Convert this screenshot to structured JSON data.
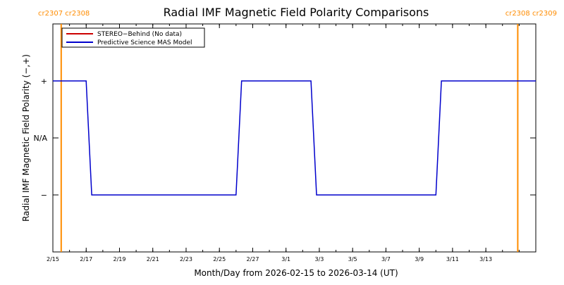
{
  "chart_data": {
    "type": "line",
    "title": "Radial IMF Magnetic Field Polarity Comparisons",
    "xlabel": "Month/Day from 2026-02-15 to 2026-03-14 (UT)",
    "ylabel": "Radial IMF Magnetic Field Polarity (−,+)",
    "x_unit": "days",
    "xlim": [
      "2026-02-15",
      "2026-03-16"
    ],
    "ylim": [
      -2,
      2
    ],
    "y_ticks": [
      {
        "value": 1,
        "label": "+"
      },
      {
        "value": 0,
        "label": "N/A"
      },
      {
        "value": -1,
        "label": "−"
      }
    ],
    "x_ticks": [
      {
        "date": "2026-02-15",
        "label": "2/15"
      },
      {
        "date": "2026-02-17",
        "label": "2/17"
      },
      {
        "date": "2026-02-19",
        "label": "2/19"
      },
      {
        "date": "2026-02-21",
        "label": "2/21"
      },
      {
        "date": "2026-02-23",
        "label": "2/23"
      },
      {
        "date": "2026-02-25",
        "label": "2/25"
      },
      {
        "date": "2026-02-27",
        "label": "2/27"
      },
      {
        "date": "2026-03-01",
        "label": "3/1"
      },
      {
        "date": "2026-03-03",
        "label": "3/3"
      },
      {
        "date": "2026-03-05",
        "label": "3/5"
      },
      {
        "date": "2026-03-07",
        "label": "3/7"
      },
      {
        "date": "2026-03-09",
        "label": "3/9"
      },
      {
        "date": "2026-03-11",
        "label": "3/11"
      },
      {
        "date": "2026-03-13",
        "label": "3/13"
      }
    ],
    "carrington_markers": [
      {
        "date": "2026-02-15 12:00",
        "label": "cr2307 cr2308",
        "color": "#ff8c00",
        "label_side": "left"
      },
      {
        "date": "2026-03-14 22:00",
        "label": "cr2308 cr2309",
        "color": "#ff8c00",
        "label_side": "right"
      }
    ],
    "series": [
      {
        "name": "STEREO−Behind (No data)",
        "color": "#cc0000",
        "points": []
      },
      {
        "name": "Predictive Science MAS Model",
        "color": "#0000cc",
        "points": [
          {
            "x": "2026-02-15 00:00",
            "y": 1
          },
          {
            "x": "2026-02-17 00:00",
            "y": 1
          },
          {
            "x": "2026-02-17 08:00",
            "y": -1
          },
          {
            "x": "2026-02-26 00:00",
            "y": -1
          },
          {
            "x": "2026-02-26 08:00",
            "y": 1
          },
          {
            "x": "2026-03-02 12:00",
            "y": 1
          },
          {
            "x": "2026-03-02 20:00",
            "y": -1
          },
          {
            "x": "2026-03-10 00:00",
            "y": -1
          },
          {
            "x": "2026-03-10 08:00",
            "y": 1
          },
          {
            "x": "2026-03-16 00:00",
            "y": 1
          }
        ]
      }
    ]
  }
}
